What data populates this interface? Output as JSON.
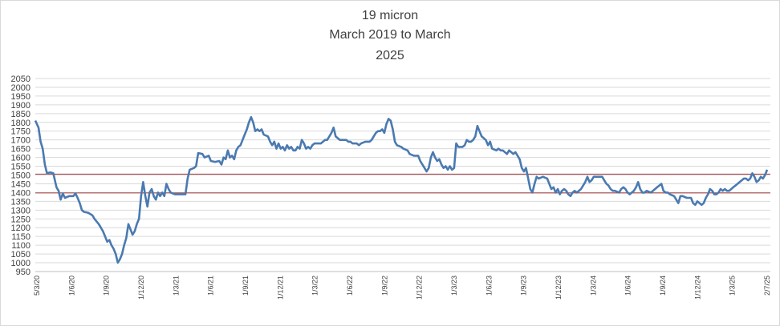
{
  "chart_data": {
    "type": "line",
    "title": "19 micron\nMarch 2019 to March\n2025",
    "title_lines": [
      "19 micron",
      "March 2019 to March",
      "2025"
    ],
    "xlabel": "",
    "ylabel": "",
    "ylim": [
      950,
      2050
    ],
    "ytick_step": 50,
    "grid": true,
    "legend": "none",
    "series_color": "#4a7ab0",
    "reference_color": "#a33a3a",
    "reference_lines": [
      1505,
      1398
    ],
    "x_tick_labels": [
      "5/3/20",
      "1/6/20",
      "1/9/20",
      "1/12/20",
      "1/3/21",
      "1/6/21",
      "1/9/21",
      "1/12/21",
      "1/3/22",
      "1/6/22",
      "1/9/22",
      "1/12/22",
      "1/3/23",
      "1/6/23",
      "1/9/23",
      "1/12/23",
      "1/3/24",
      "1/6/24",
      "1/9/24",
      "1/12/24",
      "1/3/25",
      "2/7/25"
    ],
    "series": [
      {
        "values": [
          [
            0,
            1810
          ],
          [
            1.5,
            1770
          ],
          [
            2.5,
            1690
          ],
          [
            3.5,
            1650
          ],
          [
            4.5,
            1560
          ],
          [
            5.5,
            1510
          ],
          [
            7,
            1515
          ],
          [
            8.5,
            1510
          ],
          [
            10,
            1430
          ],
          [
            11,
            1410
          ],
          [
            12,
            1360
          ],
          [
            13,
            1395
          ],
          [
            14,
            1370
          ],
          [
            16,
            1380
          ],
          [
            18,
            1380
          ],
          [
            19,
            1395
          ],
          [
            20,
            1370
          ],
          [
            21,
            1340
          ],
          [
            22,
            1300
          ],
          [
            23,
            1290
          ],
          [
            25,
            1285
          ],
          [
            27,
            1270
          ],
          [
            28,
            1250
          ],
          [
            30,
            1220
          ],
          [
            32,
            1180
          ],
          [
            33,
            1150
          ],
          [
            34,
            1120
          ],
          [
            35,
            1130
          ],
          [
            36,
            1100
          ],
          [
            37,
            1080
          ],
          [
            38,
            1050
          ],
          [
            39,
            1000
          ],
          [
            40,
            1020
          ],
          [
            41,
            1050
          ],
          [
            42,
            1100
          ],
          [
            43,
            1140
          ],
          [
            44,
            1220
          ],
          [
            45,
            1190
          ],
          [
            46,
            1160
          ],
          [
            47,
            1180
          ],
          [
            48,
            1220
          ],
          [
            49,
            1250
          ],
          [
            50,
            1380
          ],
          [
            51,
            1460
          ],
          [
            52,
            1380
          ],
          [
            53,
            1320
          ],
          [
            54,
            1400
          ],
          [
            55,
            1420
          ],
          [
            56,
            1380
          ],
          [
            57,
            1360
          ],
          [
            58,
            1400
          ],
          [
            59,
            1380
          ],
          [
            60,
            1400
          ],
          [
            61,
            1380
          ],
          [
            62,
            1450
          ],
          [
            63,
            1420
          ],
          [
            64,
            1400
          ],
          [
            66,
            1390
          ],
          [
            68,
            1390
          ],
          [
            70,
            1390
          ],
          [
            71,
            1390
          ],
          [
            72,
            1480
          ],
          [
            73,
            1530
          ],
          [
            75,
            1540
          ],
          [
            76,
            1550
          ],
          [
            77,
            1625
          ],
          [
            79,
            1620
          ],
          [
            80,
            1600
          ],
          [
            82,
            1610
          ],
          [
            83,
            1580
          ],
          [
            85,
            1575
          ],
          [
            87,
            1580
          ],
          [
            88,
            1560
          ],
          [
            89,
            1600
          ],
          [
            90,
            1590
          ],
          [
            91,
            1640
          ],
          [
            92,
            1600
          ],
          [
            93,
            1610
          ],
          [
            94,
            1590
          ],
          [
            95,
            1640
          ],
          [
            96,
            1660
          ],
          [
            97,
            1670
          ],
          [
            98,
            1700
          ],
          [
            99,
            1730
          ],
          [
            100,
            1760
          ],
          [
            101,
            1800
          ],
          [
            102,
            1830
          ],
          [
            103,
            1800
          ],
          [
            104,
            1750
          ],
          [
            105,
            1760
          ],
          [
            106,
            1750
          ],
          [
            107,
            1760
          ],
          [
            108,
            1730
          ],
          [
            110,
            1720
          ],
          [
            111,
            1690
          ],
          [
            112,
            1670
          ],
          [
            113,
            1690
          ],
          [
            114,
            1650
          ],
          [
            115,
            1680
          ],
          [
            116,
            1650
          ],
          [
            117,
            1660
          ],
          [
            118,
            1640
          ],
          [
            119,
            1670
          ],
          [
            120,
            1650
          ],
          [
            121,
            1660
          ],
          [
            122,
            1640
          ],
          [
            123,
            1640
          ],
          [
            124,
            1660
          ],
          [
            125,
            1650
          ],
          [
            126,
            1700
          ],
          [
            127,
            1680
          ],
          [
            128,
            1650
          ],
          [
            129,
            1660
          ],
          [
            130,
            1650
          ],
          [
            131,
            1670
          ],
          [
            132,
            1680
          ],
          [
            133,
            1680
          ],
          [
            135,
            1680
          ],
          [
            136,
            1690
          ],
          [
            137,
            1700
          ],
          [
            138,
            1700
          ],
          [
            139,
            1720
          ],
          [
            140,
            1740
          ],
          [
            141,
            1770
          ],
          [
            142,
            1720
          ],
          [
            143,
            1710
          ],
          [
            144,
            1700
          ],
          [
            145,
            1700
          ],
          [
            147,
            1700
          ],
          [
            148,
            1690
          ],
          [
            149,
            1690
          ],
          [
            150,
            1680
          ],
          [
            152,
            1680
          ],
          [
            153,
            1670
          ],
          [
            154,
            1680
          ],
          [
            156,
            1690
          ],
          [
            158,
            1690
          ],
          [
            159,
            1700
          ],
          [
            160,
            1720
          ],
          [
            161,
            1740
          ],
          [
            162,
            1750
          ],
          [
            163,
            1750
          ],
          [
            164,
            1760
          ],
          [
            165,
            1740
          ],
          [
            166,
            1790
          ],
          [
            167,
            1820
          ],
          [
            168,
            1810
          ],
          [
            169,
            1760
          ],
          [
            170,
            1690
          ],
          [
            171,
            1670
          ],
          [
            173,
            1660
          ],
          [
            174,
            1650
          ],
          [
            176,
            1640
          ],
          [
            177,
            1620
          ],
          [
            179,
            1610
          ],
          [
            181,
            1610
          ],
          [
            182,
            1580
          ],
          [
            183,
            1560
          ],
          [
            184,
            1540
          ],
          [
            185,
            1520
          ],
          [
            186,
            1540
          ],
          [
            187,
            1600
          ],
          [
            188,
            1630
          ],
          [
            189,
            1600
          ],
          [
            190,
            1580
          ],
          [
            191,
            1590
          ],
          [
            192,
            1560
          ],
          [
            193,
            1540
          ],
          [
            194,
            1550
          ],
          [
            195,
            1530
          ],
          [
            196,
            1550
          ],
          [
            197,
            1530
          ],
          [
            198,
            1540
          ],
          [
            199,
            1680
          ],
          [
            200,
            1660
          ],
          [
            202,
            1660
          ],
          [
            203,
            1670
          ],
          [
            204,
            1700
          ],
          [
            205,
            1690
          ],
          [
            206,
            1690
          ],
          [
            207,
            1700
          ],
          [
            208,
            1720
          ],
          [
            209,
            1780
          ],
          [
            210,
            1750
          ],
          [
            211,
            1720
          ],
          [
            212,
            1710
          ],
          [
            213,
            1700
          ],
          [
            214,
            1670
          ],
          [
            215,
            1690
          ],
          [
            216,
            1650
          ],
          [
            218,
            1640
          ],
          [
            219,
            1650
          ],
          [
            220,
            1640
          ],
          [
            221,
            1640
          ],
          [
            222,
            1630
          ],
          [
            223,
            1620
          ],
          [
            224,
            1640
          ],
          [
            225,
            1630
          ],
          [
            226,
            1620
          ],
          [
            227,
            1630
          ],
          [
            228,
            1610
          ],
          [
            229,
            1590
          ],
          [
            230,
            1540
          ],
          [
            231,
            1520
          ],
          [
            232,
            1540
          ],
          [
            233,
            1480
          ],
          [
            234,
            1420
          ],
          [
            235,
            1400
          ],
          [
            236,
            1450
          ],
          [
            237,
            1490
          ],
          [
            238,
            1480
          ],
          [
            240,
            1490
          ],
          [
            242,
            1480
          ],
          [
            243,
            1450
          ],
          [
            244,
            1420
          ],
          [
            245,
            1430
          ],
          [
            246,
            1400
          ],
          [
            247,
            1420
          ],
          [
            248,
            1390
          ],
          [
            249,
            1410
          ],
          [
            250,
            1420
          ],
          [
            251,
            1410
          ],
          [
            252,
            1390
          ],
          [
            253,
            1380
          ],
          [
            254,
            1400
          ],
          [
            255,
            1410
          ],
          [
            256,
            1400
          ],
          [
            257,
            1410
          ],
          [
            258,
            1420
          ],
          [
            259,
            1440
          ],
          [
            260,
            1460
          ],
          [
            261,
            1490
          ],
          [
            262,
            1460
          ],
          [
            263,
            1470
          ],
          [
            264,
            1490
          ],
          [
            266,
            1490
          ],
          [
            268,
            1490
          ],
          [
            269,
            1470
          ],
          [
            270,
            1450
          ],
          [
            271,
            1440
          ],
          [
            272,
            1420
          ],
          [
            273,
            1410
          ],
          [
            274,
            1410
          ],
          [
            276,
            1400
          ],
          [
            277,
            1420
          ],
          [
            278,
            1430
          ],
          [
            279,
            1420
          ],
          [
            280,
            1400
          ],
          [
            281,
            1390
          ],
          [
            282,
            1400
          ],
          [
            283,
            1410
          ],
          [
            284,
            1430
          ],
          [
            285,
            1460
          ],
          [
            286,
            1420
          ],
          [
            287,
            1400
          ],
          [
            288,
            1400
          ],
          [
            289,
            1410
          ],
          [
            291,
            1400
          ],
          [
            292,
            1410
          ],
          [
            293,
            1420
          ],
          [
            294,
            1430
          ],
          [
            295,
            1440
          ],
          [
            296,
            1450
          ],
          [
            297,
            1410
          ],
          [
            298,
            1400
          ],
          [
            299,
            1400
          ],
          [
            300,
            1390
          ],
          [
            302,
            1380
          ],
          [
            303,
            1360
          ],
          [
            304,
            1340
          ],
          [
            305,
            1380
          ],
          [
            306,
            1380
          ],
          [
            308,
            1370
          ],
          [
            310,
            1370
          ],
          [
            311,
            1340
          ],
          [
            312,
            1330
          ],
          [
            313,
            1350
          ],
          [
            314,
            1340
          ],
          [
            315,
            1330
          ],
          [
            316,
            1340
          ],
          [
            317,
            1370
          ],
          [
            318,
            1390
          ],
          [
            319,
            1420
          ],
          [
            320,
            1410
          ],
          [
            321,
            1390
          ],
          [
            322,
            1390
          ],
          [
            323,
            1400
          ],
          [
            324,
            1420
          ],
          [
            325,
            1410
          ],
          [
            326,
            1420
          ],
          [
            327,
            1410
          ],
          [
            328,
            1410
          ],
          [
            329,
            1420
          ],
          [
            330,
            1430
          ],
          [
            331,
            1440
          ],
          [
            332,
            1450
          ],
          [
            333,
            1460
          ],
          [
            334,
            1470
          ],
          [
            335,
            1480
          ],
          [
            336,
            1480
          ],
          [
            337,
            1470
          ],
          [
            338,
            1480
          ],
          [
            339,
            1510
          ],
          [
            340,
            1490
          ],
          [
            341,
            1460
          ],
          [
            342,
            1470
          ],
          [
            343,
            1490
          ],
          [
            344,
            1480
          ],
          [
            345,
            1500
          ],
          [
            346,
            1530
          ]
        ]
      }
    ]
  }
}
